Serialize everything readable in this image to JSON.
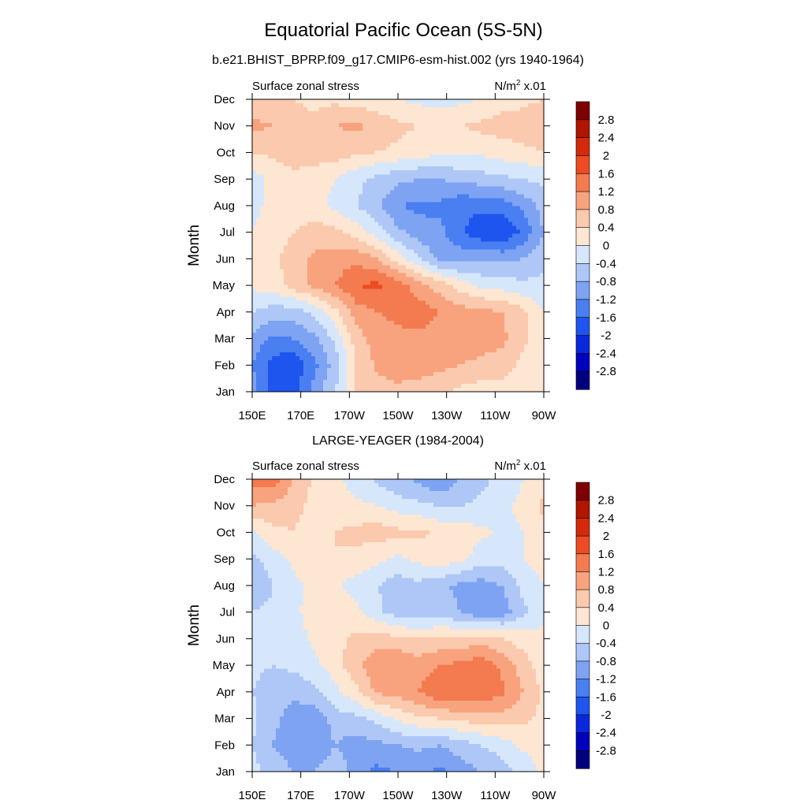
{
  "title": "Equatorial Pacific Ocean (5S-5N)",
  "chart_data": [
    {
      "type": "heatmap",
      "title": "b.e21.BHIST_BPRP.f09_g17.CMIP6-esm-hist.002 (yrs 1940-1964)",
      "left_label": "Surface zonal stress",
      "right_label": "N/m",
      "right_label_sup": "2",
      "right_label_suffix": " x.01",
      "ylabel": "Month",
      "x_ticks": [
        "150E",
        "170E",
        "170W",
        "150W",
        "130W",
        "110W",
        "90W"
      ],
      "y_ticks": [
        "Jan",
        "Feb",
        "Mar",
        "Apr",
        "May",
        "Jun",
        "Jul",
        "Aug",
        "Sep",
        "Oct",
        "Nov",
        "Dec"
      ],
      "colorbar_labels": [
        "2.8",
        "2.4",
        "2",
        "1.6",
        "1.2",
        "0.8",
        "0.4",
        "0",
        "-0.4",
        "-0.8",
        "-1.2",
        "-1.6",
        "-2",
        "-2.4",
        "-2.8"
      ],
      "grid": [
        [
          -1.0,
          -1.9,
          -1.8,
          -1.0,
          -0.4,
          0.5,
          0.6,
          0.7,
          0.6,
          0.5,
          0.3,
          0.2,
          0.2,
          0.1,
          0.0
        ],
        [
          -1.2,
          -1.8,
          -1.9,
          -1.3,
          -0.6,
          0.4,
          0.9,
          1.0,
          1.0,
          0.9,
          0.8,
          0.7,
          0.6,
          0.3,
          0.0
        ],
        [
          -0.9,
          -1.3,
          -1.2,
          -0.9,
          -0.3,
          0.6,
          1.0,
          1.1,
          1.1,
          1.0,
          1.0,
          1.0,
          0.9,
          0.5,
          0.0
        ],
        [
          -0.4,
          -0.6,
          -0.6,
          -0.3,
          0.3,
          1.0,
          1.2,
          1.3,
          1.4,
          1.2,
          1.0,
          0.9,
          0.8,
          0.5,
          0.0
        ],
        [
          0.1,
          0.2,
          0.6,
          0.9,
          1.2,
          1.6,
          1.7,
          1.4,
          1.0,
          0.6,
          0.2,
          -0.1,
          -0.2,
          -0.3,
          -0.3
        ],
        [
          0.1,
          0.3,
          0.6,
          0.9,
          1.0,
          1.1,
          0.8,
          0.2,
          -0.4,
          -0.9,
          -1.0,
          -0.9,
          -0.9,
          -0.8,
          -0.5
        ],
        [
          0.0,
          0.2,
          0.4,
          0.6,
          0.5,
          0.2,
          -0.2,
          -0.7,
          -1.0,
          -1.1,
          -1.5,
          -1.9,
          -2.0,
          -1.5,
          -0.8
        ],
        [
          -0.1,
          0.1,
          0.2,
          0.1,
          -0.1,
          -0.4,
          -0.7,
          -1.2,
          -1.3,
          -1.3,
          -1.5,
          -1.5,
          -1.4,
          -1.1,
          -0.6
        ],
        [
          -0.2,
          0.1,
          0.3,
          0.2,
          0.0,
          -0.3,
          -0.5,
          -0.7,
          -0.8,
          -0.8,
          -0.7,
          -0.6,
          -0.5,
          -0.4,
          -0.3
        ],
        [
          0.4,
          0.5,
          0.6,
          0.6,
          0.6,
          0.5,
          0.4,
          0.3,
          0.2,
          0.1,
          0.1,
          0.1,
          0.2,
          0.3,
          0.4
        ],
        [
          0.9,
          0.8,
          0.6,
          0.5,
          0.8,
          0.9,
          0.7,
          0.5,
          0.4,
          0.4,
          0.4,
          0.5,
          0.6,
          0.6,
          0.7
        ],
        [
          0.6,
          0.5,
          0.4,
          0.3,
          0.3,
          0.2,
          0.1,
          0.0,
          -0.1,
          -0.2,
          -0.1,
          0.0,
          0.2,
          0.3,
          0.4
        ]
      ]
    },
    {
      "type": "heatmap",
      "title": "LARGE-YEAGER (1984-2004)",
      "left_label": "Surface zonal stress",
      "right_label": "N/m",
      "right_label_sup": "2",
      "right_label_suffix": " x.01",
      "ylabel": "Month",
      "x_ticks": [
        "150E",
        "170E",
        "170W",
        "150W",
        "130W",
        "110W",
        "90W"
      ],
      "y_ticks": [
        "Jan",
        "Feb",
        "Mar",
        "Apr",
        "May",
        "Jun",
        "Jul",
        "Aug",
        "Sep",
        "Oct",
        "Nov",
        "Dec"
      ],
      "colorbar_labels": [
        "2.8",
        "2.4",
        "2",
        "1.6",
        "1.2",
        "0.8",
        "0.4",
        "0",
        "-0.4",
        "-0.8",
        "-1.2",
        "-1.6",
        "-2",
        "-2.4",
        "-2.8"
      ],
      "grid": [
        [
          -0.3,
          -0.5,
          -0.8,
          -0.8,
          -0.5,
          -1.0,
          -1.3,
          -1.2,
          -1.1,
          -1.3,
          -1.0,
          -0.8,
          -0.6,
          -0.3,
          0.1
        ],
        [
          -0.4,
          -0.8,
          -1.1,
          -1.2,
          -0.8,
          -1.0,
          -0.9,
          -0.8,
          -0.7,
          -0.8,
          -0.6,
          -0.4,
          -0.2,
          0.1,
          0.2
        ],
        [
          -0.3,
          -0.7,
          -1.0,
          -1.1,
          -0.6,
          -0.5,
          -0.3,
          0.1,
          0.3,
          0.4,
          0.5,
          0.6,
          0.6,
          0.5,
          0.3
        ],
        [
          -0.4,
          -0.6,
          -0.7,
          -0.5,
          -0.1,
          0.3,
          0.9,
          1.0,
          1.2,
          1.6,
          1.6,
          1.5,
          1.3,
          0.8,
          0.3
        ],
        [
          -0.3,
          -0.4,
          -0.3,
          -0.1,
          0.2,
          0.7,
          1.1,
          1.2,
          1.0,
          1.2,
          1.3,
          1.5,
          1.1,
          0.6,
          0.2
        ],
        [
          -0.2,
          -0.3,
          -0.2,
          0.1,
          0.3,
          0.5,
          0.6,
          0.5,
          0.4,
          0.5,
          0.5,
          0.6,
          0.4,
          0.2,
          0.1
        ],
        [
          -0.4,
          -0.3,
          -0.1,
          0.2,
          0.3,
          0.1,
          -0.3,
          -0.6,
          -0.7,
          -0.6,
          -0.8,
          -1.1,
          -1.0,
          -0.5,
          -0.1
        ],
        [
          -0.8,
          -0.4,
          -0.1,
          0.1,
          0.1,
          -0.2,
          -0.4,
          -0.6,
          -0.5,
          -0.7,
          -0.9,
          -1.0,
          -0.8,
          -0.3,
          0.0
        ],
        [
          -0.5,
          -0.2,
          0.1,
          0.3,
          0.4,
          0.3,
          0.1,
          -0.1,
          0.1,
          0.3,
          0.1,
          -0.2,
          -0.2,
          0.0,
          0.2
        ],
        [
          -0.1,
          0.3,
          0.4,
          0.2,
          0.4,
          0.5,
          0.6,
          0.5,
          0.5,
          0.3,
          0.2,
          0.1,
          -0.1,
          0.0,
          0.3
        ],
        [
          0.8,
          0.7,
          0.5,
          0.3,
          0.2,
          0.1,
          0.0,
          -0.2,
          -0.3,
          -0.4,
          -0.4,
          -0.3,
          -0.1,
          0.1,
          0.5
        ],
        [
          1.4,
          1.5,
          0.8,
          0.3,
          0.1,
          -0.2,
          -0.5,
          -0.7,
          -0.9,
          -1.2,
          -0.8,
          -0.5,
          -0.3,
          0.0,
          0.3
        ]
      ]
    }
  ],
  "palette": [
    "#00007f",
    "#0000bf",
    "#0a28db",
    "#1e55ef",
    "#4a7ff2",
    "#7ea3f3",
    "#aec7f6",
    "#d7e7fb",
    "#fde6d2",
    "#fbc9ad",
    "#f8a37e",
    "#f47a4f",
    "#ec4b24",
    "#d42a0c",
    "#b01500",
    "#7f0000"
  ]
}
